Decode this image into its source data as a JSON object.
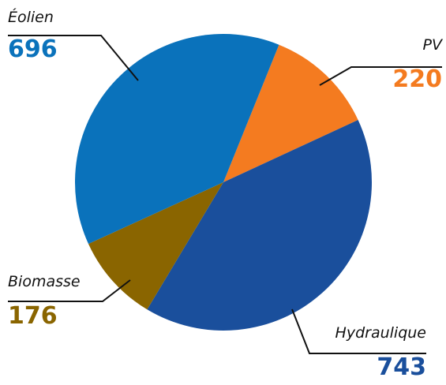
{
  "chart_data": {
    "type": "pie",
    "categories": [
      "PV",
      "Hydraulique",
      "Biomasse",
      "Éolien"
    ],
    "values": [
      220,
      743,
      176,
      696
    ],
    "colors": [
      "#f47b20",
      "#1a4f9c",
      "#8a6500",
      "#0a72bb"
    ]
  }
}
